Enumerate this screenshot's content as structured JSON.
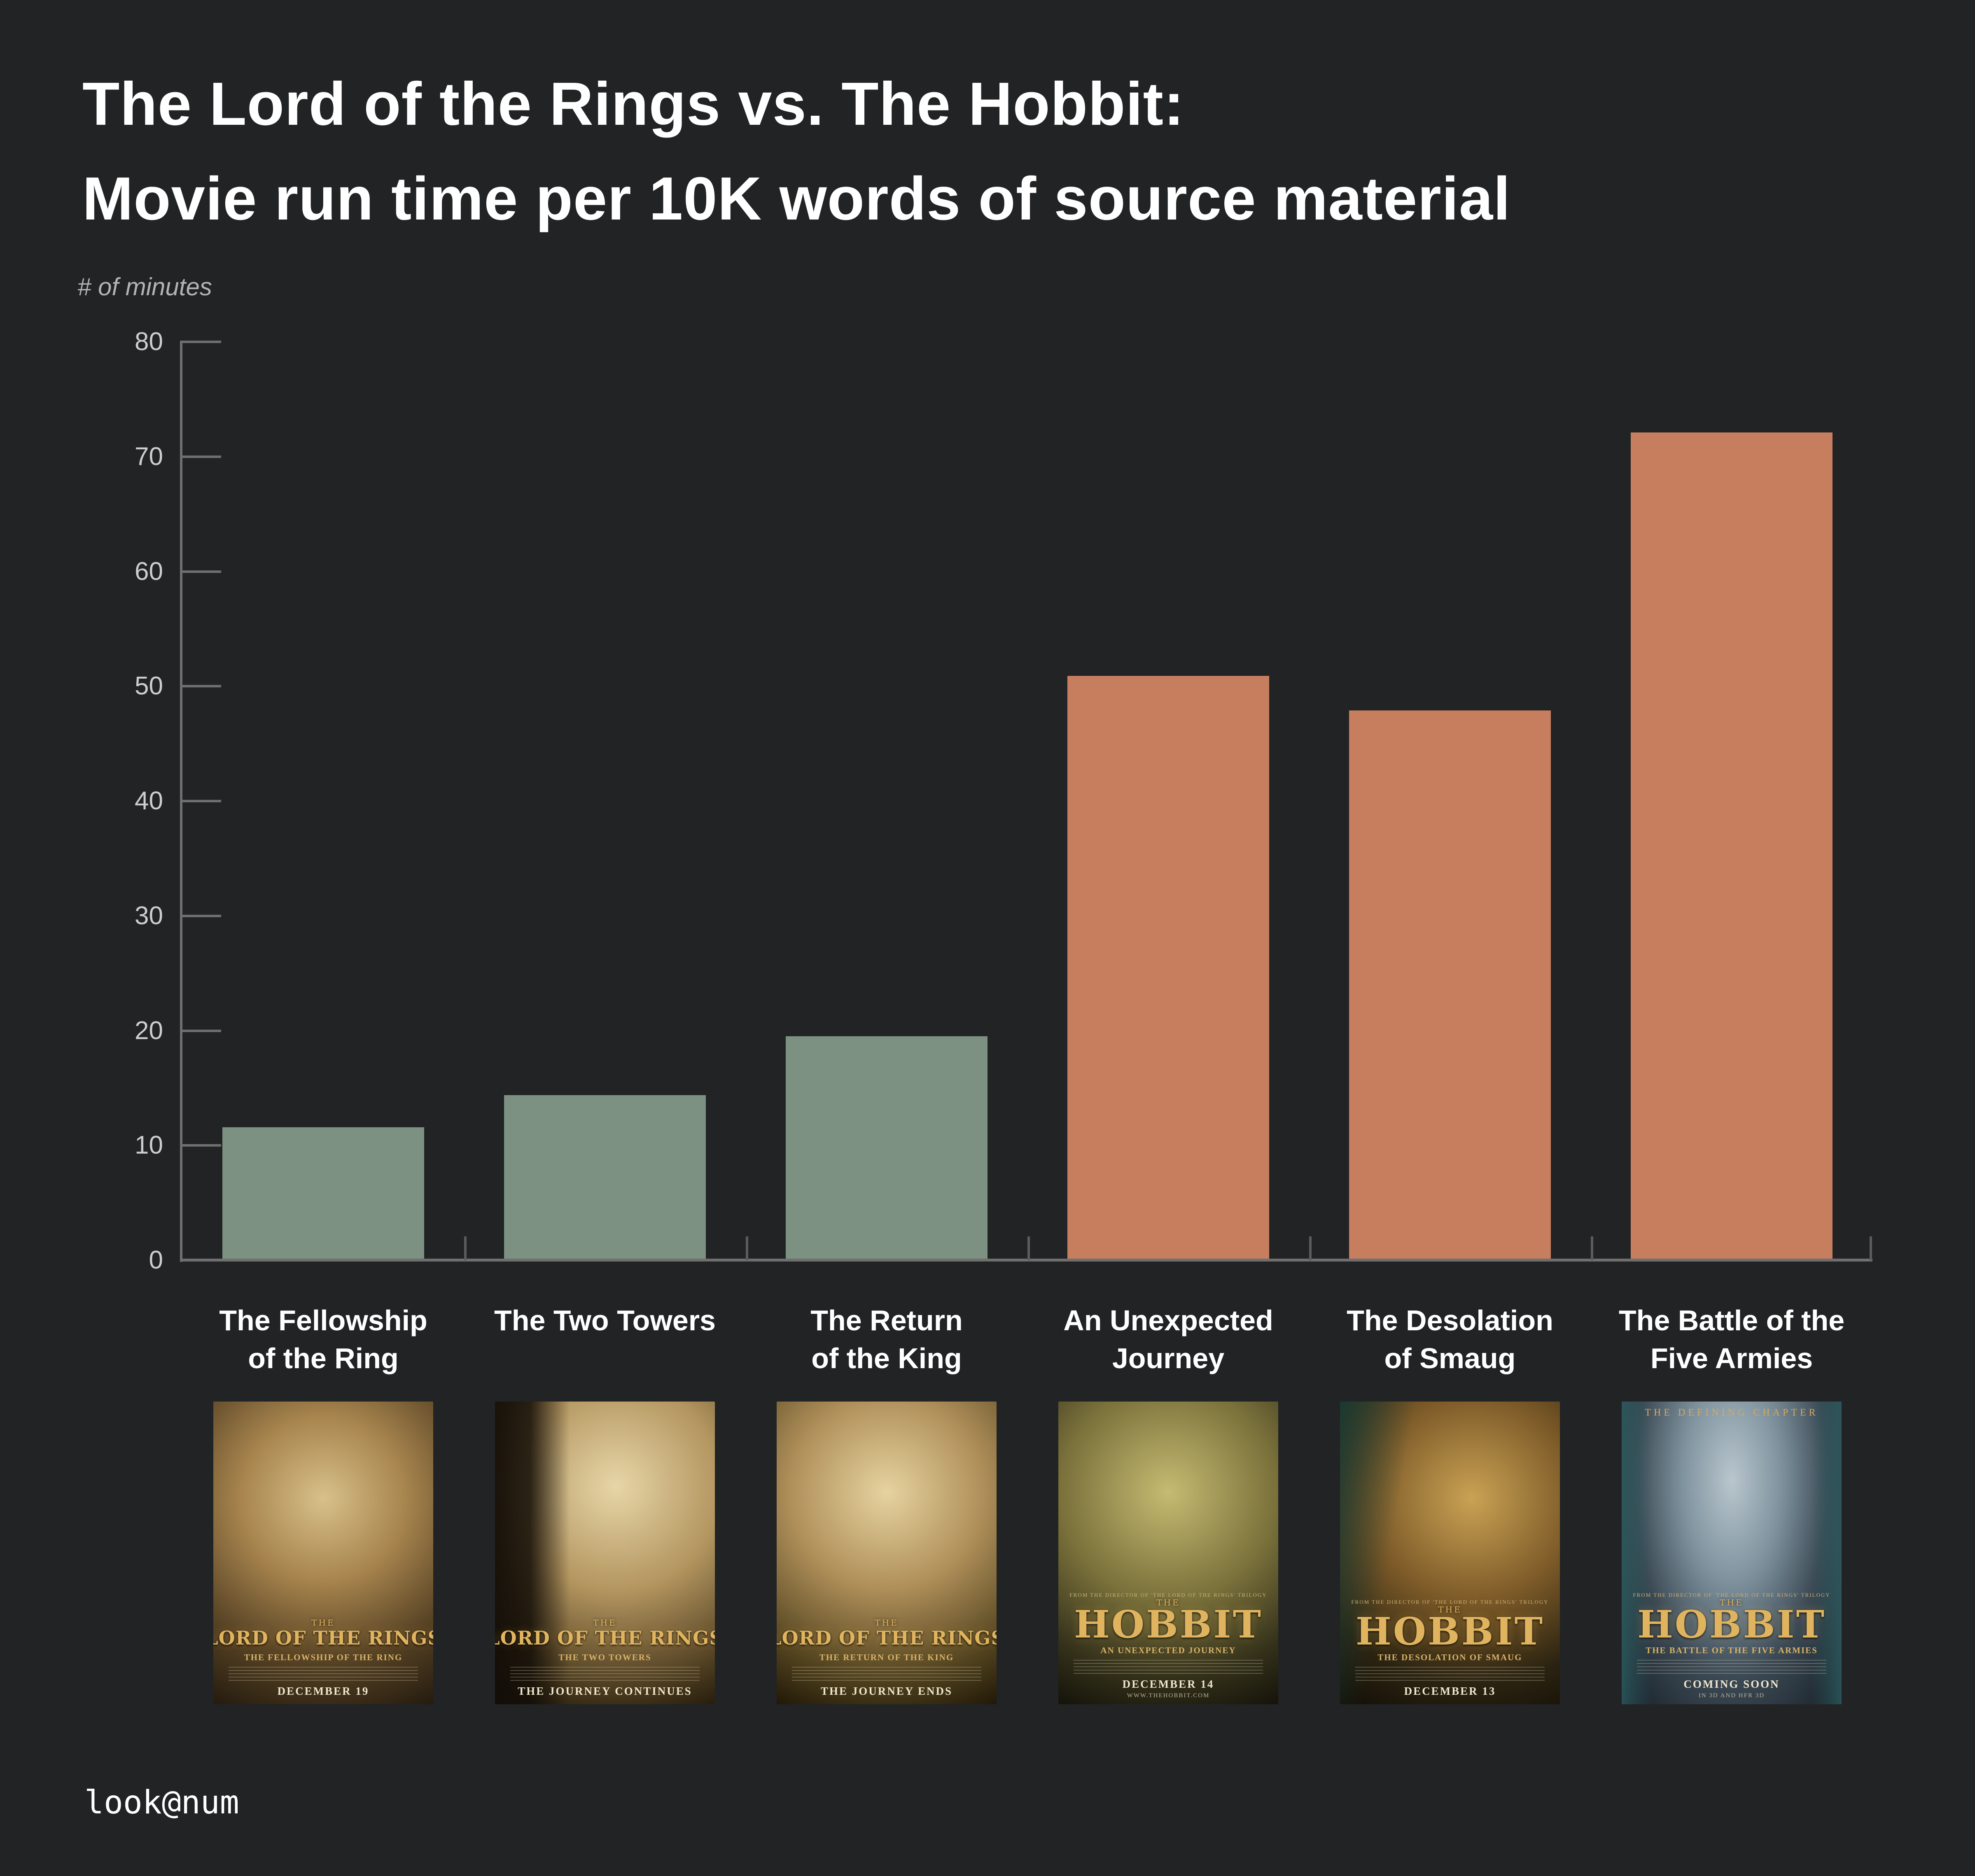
{
  "title": {
    "line1": "The Lord of the Rings vs. The Hobbit:",
    "line2": "Movie run time per 10K words of source material"
  },
  "y_axis": {
    "label": "# of minutes"
  },
  "footer": {
    "credit": "look@num"
  },
  "colors": {
    "background": "#222324",
    "lotr_bar": "#7c9181",
    "hobbit_bar": "#c67e5f",
    "axis": "#6f6f6f",
    "tick_label": "#cdcdcd",
    "title_text": "#ffffff"
  },
  "chart_data": {
    "type": "bar",
    "title": "The Lord of the Rings vs. The Hobbit: Movie run time per 10K words of source material",
    "ylabel": "# of minutes",
    "xlabel": "",
    "ylim": [
      0,
      80
    ],
    "yticks": [
      0,
      10,
      20,
      30,
      40,
      50,
      60,
      70,
      80
    ],
    "grid": false,
    "legend": "none",
    "categories": [
      "The Fellowship of the Ring",
      "The Two Towers",
      "The Return of the King",
      "An Unexpected Journey",
      "The Desolation of Smaug",
      "The Battle of the Five Armies"
    ],
    "values": [
      11.6,
      14.4,
      19.5,
      50.9,
      47.9,
      72.1
    ],
    "series": [
      {
        "name": "The Lord of the Rings",
        "color": "#7c9181",
        "indices": [
          0,
          1,
          2
        ]
      },
      {
        "name": "The Hobbit",
        "color": "#c67e5f",
        "indices": [
          3,
          4,
          5
        ]
      }
    ]
  },
  "columns": [
    {
      "label_lines": [
        "The Fellowship",
        "of the Ring"
      ],
      "group": "lotr",
      "poster": {
        "name": "fellowship-of-the-ring-poster",
        "top_text": "",
        "above_brand": "",
        "brand_prefix": "THE",
        "brand": "LORD OF THE RINGS",
        "brand_style": "lotr",
        "subtitle": "THE FELLOWSHIP OF THE RING",
        "tagline": "DECEMBER 19",
        "tagline2": "",
        "art": "radial-gradient(circle at 50% 32%, #d8c08a 0%, #a8854e 35%, #5a4526 68%, #241b0e 100%)"
      }
    },
    {
      "label_lines": [
        "The Two Towers"
      ],
      "group": "lotr",
      "poster": {
        "name": "two-towers-poster",
        "top_text": "",
        "above_brand": "",
        "brand_prefix": "THE",
        "brand": "LORD OF THE RINGS",
        "brand_style": "lotr",
        "subtitle": "THE TWO TOWERS",
        "tagline": "THE JOURNEY CONTINUES",
        "tagline2": "",
        "art": "linear-gradient(90deg, rgba(18,13,7,.95) 0%, rgba(18,13,7,.85) 16%, rgba(18,13,7,0) 34%), radial-gradient(circle at 55% 28%, #e7d6a8 0%, #b3955f 42%, #4a3a1e 82%, #1c1509 100%)"
      }
    },
    {
      "label_lines": [
        "The Return",
        "of the King"
      ],
      "group": "lotr",
      "poster": {
        "name": "return-of-the-king-poster",
        "top_text": "",
        "above_brand": "",
        "brand_prefix": "THE",
        "brand": "LORD OF THE RINGS",
        "brand_style": "lotr",
        "subtitle": "THE RETURN OF THE KING",
        "tagline": "THE JOURNEY ENDS",
        "tagline2": "",
        "art": "radial-gradient(circle at 50% 30%, #e6d3a0 0%, #b0905a 40%, #52431f 78%, #201808 100%)"
      }
    },
    {
      "label_lines": [
        "An Unexpected",
        "Journey"
      ],
      "group": "hobbit",
      "poster": {
        "name": "an-unexpected-journey-poster",
        "top_text": "",
        "above_brand": "FROM THE DIRECTOR OF 'THE LORD OF THE RINGS' TRILOGY",
        "brand_prefix": "THE",
        "brand": "HOBBIT",
        "brand_style": "hobbit",
        "subtitle": "AN UNEXPECTED JOURNEY",
        "tagline": "DECEMBER 14",
        "tagline2": "WWW.THEHOBBIT.COM",
        "art": "radial-gradient(circle at 50% 30%, #c6bb72 0%, #7a713b 45%, #33301a 78%, #15130a 100%)"
      }
    },
    {
      "label_lines": [
        "The Desolation",
        "of Smaug"
      ],
      "group": "hobbit",
      "poster": {
        "name": "desolation-of-smaug-poster",
        "top_text": "",
        "above_brand": "FROM THE DIRECTOR OF 'THE LORD OF THE RINGS' TRILOGY",
        "brand_prefix": "THE",
        "brand": "HOBBIT",
        "brand_style": "hobbit",
        "subtitle": "THE DESOLATION OF SMAUG",
        "tagline": "DECEMBER 13",
        "tagline2": "",
        "art": "linear-gradient(100deg, rgba(23,58,51,.9) 0%, rgba(23,58,51,0) 28%), radial-gradient(circle at 60% 32%, #caa254 0%, #7c5a28 42%, #2c2412 75%, #120e06 100%)"
      }
    },
    {
      "label_lines": [
        "The Battle of the",
        "Five Armies"
      ],
      "group": "hobbit",
      "poster": {
        "name": "battle-of-the-five-armies-poster",
        "top_text": "THE DEFINING CHAPTER",
        "above_brand": "FROM THE DIRECTOR OF 'THE LORD OF THE RINGS' TRILOGY",
        "brand_prefix": "THE",
        "brand": "HOBBIT",
        "brand_style": "hobbit",
        "subtitle": "THE BATTLE OF THE FIVE ARMIES",
        "tagline": "COMING SOON",
        "tagline2": "IN 3D AND HFR 3D",
        "art": "linear-gradient(90deg, rgba(44,90,94,.85) 0%, rgba(44,90,94,0) 14%, rgba(44,90,94,0) 86%, rgba(44,90,94,.85) 100%), radial-gradient(ellipse at 50% 26%, #b9c6cd 0%, #7e929e 32%, #3c4a55 62%, #141c24 100%)"
      }
    }
  ]
}
